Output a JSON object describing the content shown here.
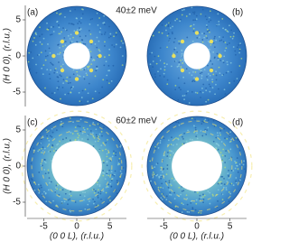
{
  "chart_data": [
    {
      "type": "map",
      "panel_label": "(a)",
      "annotation": "40±2 meV",
      "y_label": "(H 0 0), (r.l.u.)",
      "xlim": [
        -7.5,
        7.5
      ],
      "ylim": [
        -7,
        7
      ],
      "yticks": [
        5,
        0,
        -5
      ],
      "hole": 2
    },
    {
      "type": "map",
      "panel_label": "(b)",
      "xlim": [
        -7.5,
        7.5
      ],
      "ylim": [
        -7,
        7
      ],
      "hole": 2
    },
    {
      "type": "map",
      "panel_label": "(c)",
      "annotation": "60±2 meV",
      "y_label": "(H 0 0), (r.l.u.)",
      "x_label": "(0 0 L), (r.l.u.)",
      "xlim": [
        -7.5,
        7.5
      ],
      "ylim": [
        -7,
        7
      ],
      "yticks": [
        5,
        0,
        -5
      ],
      "xticks": [
        -5,
        0,
        5
      ],
      "hole": 3.8
    },
    {
      "type": "map",
      "panel_label": "(d)",
      "x_label": "(0 0 L), (r.l.u.)",
      "xlim": [
        -7.5,
        7.5
      ],
      "ylim": [
        -7,
        7
      ],
      "xticks": [
        -5,
        0,
        5
      ],
      "hole": 3.8
    }
  ]
}
